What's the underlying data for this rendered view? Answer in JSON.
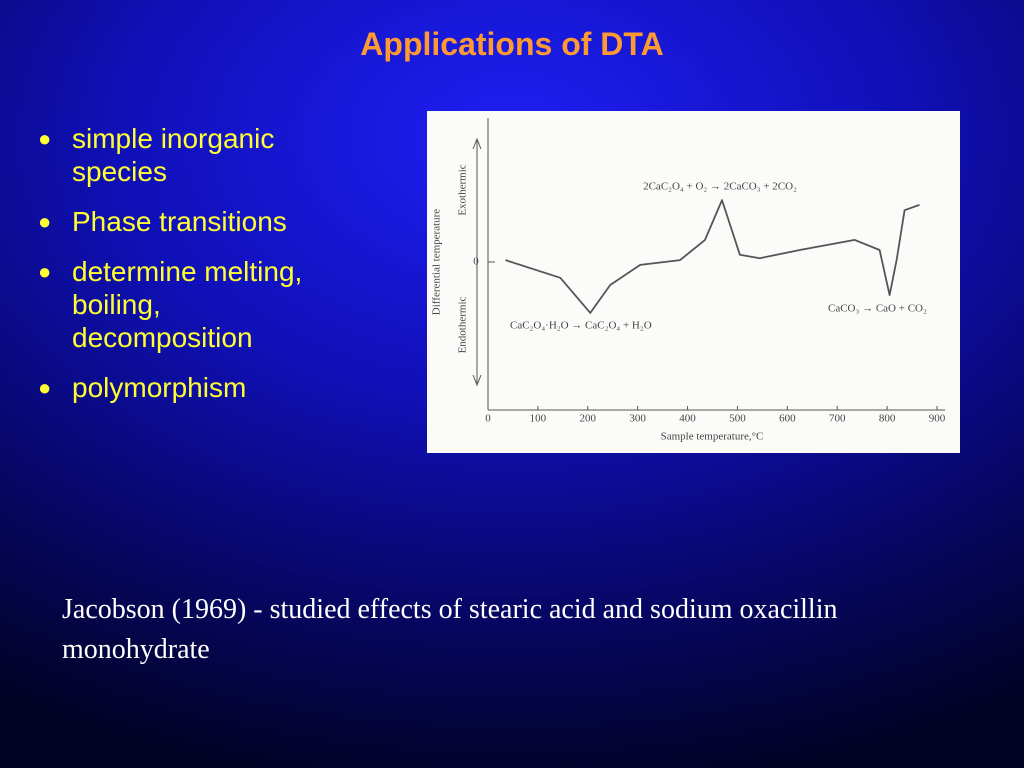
{
  "title": "Applications of DTA",
  "bullets": [
    "simple inorganic species",
    "Phase transitions",
    "determine melting, boiling, decomposition",
    "polymorphism"
  ],
  "chart_data": {
    "type": "line",
    "xlabel": "Sample temperature,°C",
    "ylabel": "Differential temperature",
    "annotations": [
      "Exothermic",
      "Endothermic",
      "2CaC₂O₄ + O₂ → 2CaCO₃ + 2CO₂",
      "CaC₂O₄·H₂O → CaC₂O₄ + H₂O",
      "CaCO₃ → CaO + CO₂"
    ],
    "x": [
      35,
      145,
      205,
      245,
      305,
      385,
      435,
      469,
      505,
      545,
      625,
      735,
      785,
      805,
      819,
      835,
      865
    ],
    "values": [
      0.04,
      -0.33,
      -1.06,
      -0.48,
      -0.06,
      0.04,
      0.46,
      1.29,
      0.15,
      0.08,
      0.25,
      0.46,
      0.25,
      -0.69,
      0.04,
      1.08,
      1.19
    ],
    "color": "#555555",
    "xlim": [
      0,
      900
    ],
    "ylim": [
      -3,
      3
    ],
    "xticks": [
      0,
      100,
      200,
      300,
      400,
      500,
      600,
      700,
      800,
      900
    ],
    "yticks": [
      0
    ]
  },
  "caption": "Jacobson (1969) - studied effects of stearic acid and sodium oxacillin monohydrate"
}
